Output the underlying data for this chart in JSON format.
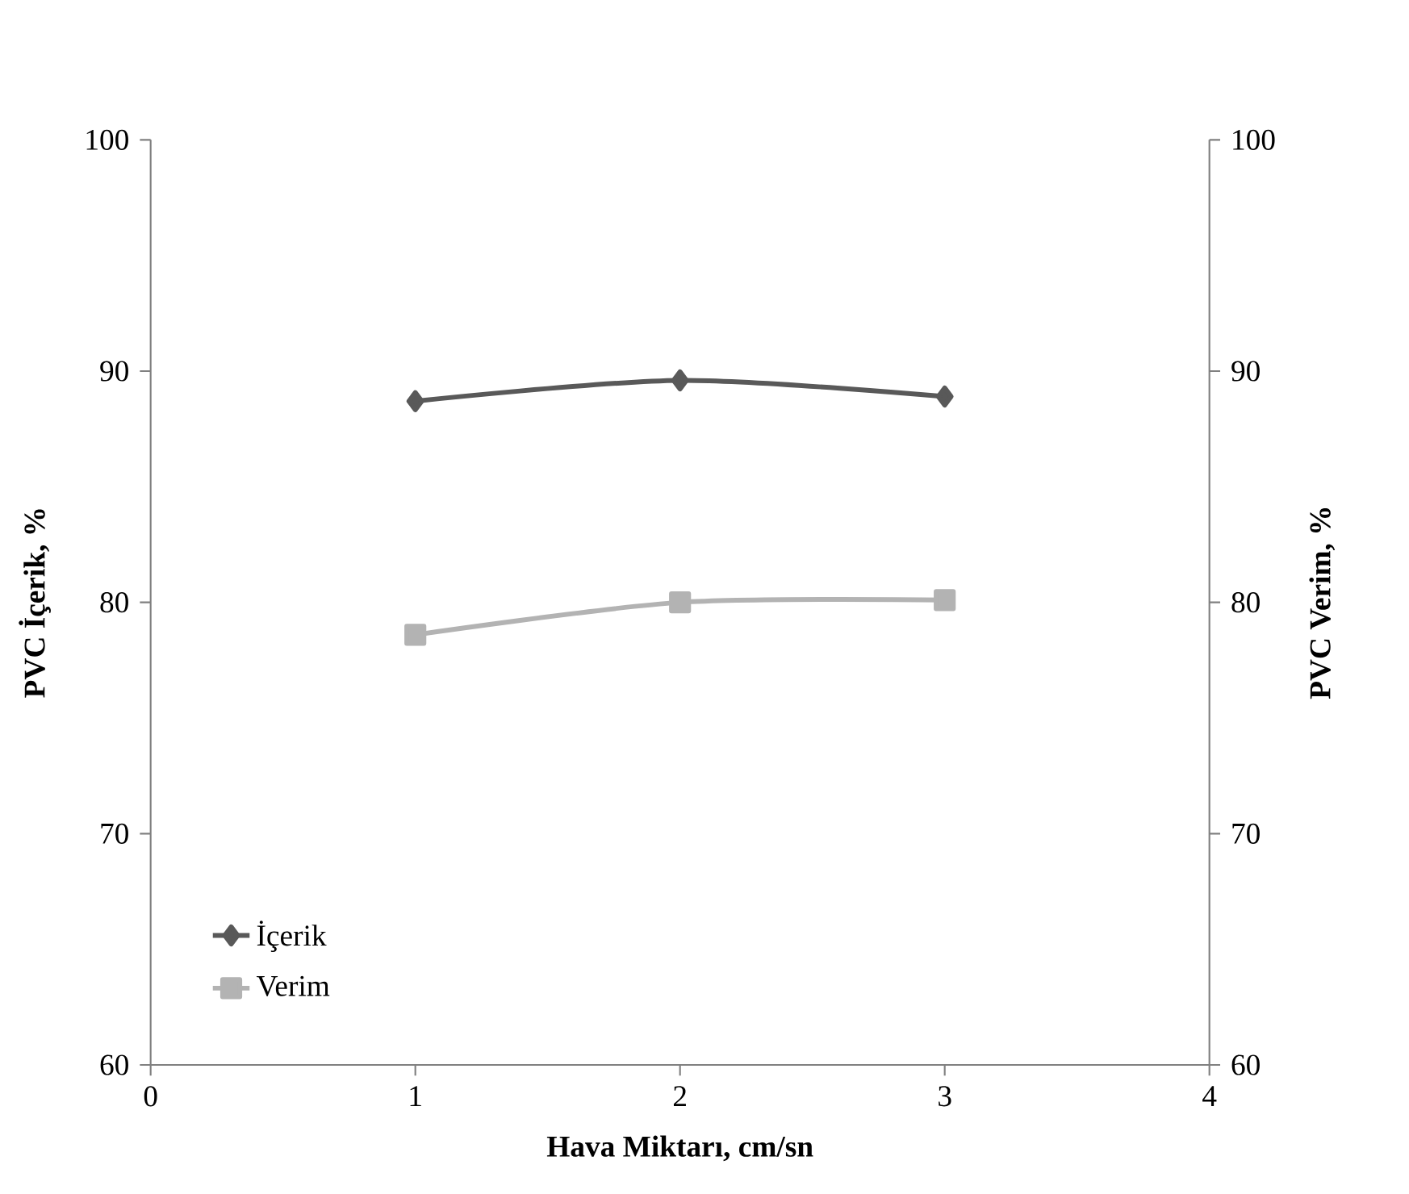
{
  "chart_data": {
    "type": "line",
    "xlabel": "Hava Miktarı, cm/sn",
    "ylabel": "PVC İçerik, %",
    "y2label": "PVC Verim, %",
    "x": [
      1,
      2,
      3
    ],
    "series": [
      {
        "name": "İçerik",
        "color": "#595959",
        "marker": "diamond",
        "values": [
          88.7,
          89.6,
          88.9
        ]
      },
      {
        "name": "Verim",
        "color": "#b3b3b3",
        "marker": "square",
        "axis": "y2",
        "values": [
          78.6,
          80.0,
          80.1
        ]
      }
    ],
    "xlim": [
      0,
      4
    ],
    "xticks": [
      0,
      1,
      2,
      3,
      4
    ],
    "ylim": [
      60,
      100
    ],
    "yticks": [
      60,
      70,
      80,
      90,
      100
    ],
    "y2lim": [
      60,
      100
    ],
    "y2ticks": [
      60,
      70,
      80,
      90,
      100
    ],
    "legend": "bottom left",
    "grid": false,
    "line_style": "solid"
  }
}
